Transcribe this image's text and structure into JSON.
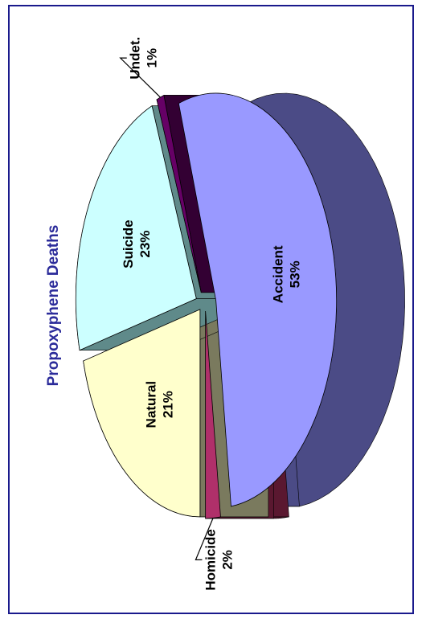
{
  "chart_data": {
    "type": "pie",
    "title": "Propoxyphene Deaths",
    "slices": [
      {
        "label": "Accident",
        "value": 53,
        "value_label": "53%",
        "color": "#9999ff",
        "side": "#4b4b86"
      },
      {
        "label": "Homicide",
        "value": 2,
        "value_label": "2%",
        "color": "#b0306a",
        "side": "#5a1830"
      },
      {
        "label": "Natural",
        "value": 21,
        "value_label": "21%",
        "color": "#ffffcc",
        "side": "#7a7a5e"
      },
      {
        "label": "Suicide",
        "value": 23,
        "value_label": "23%",
        "color": "#ccffff",
        "side": "#5f8a8a"
      },
      {
        "label": "Undet.",
        "value": 1,
        "value_label": "1%",
        "color": "#660066",
        "side": "#330033"
      }
    ],
    "orientation": "rotated-90",
    "exploded": true,
    "legend": "none"
  },
  "colors": {
    "title": "#2b2b9a",
    "frame": "#1a1a8c"
  }
}
